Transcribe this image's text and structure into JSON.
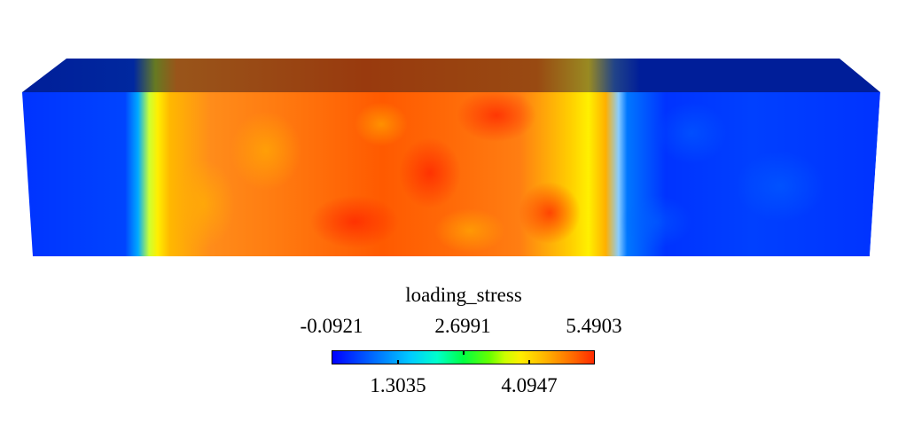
{
  "colorbar": {
    "title": "loading_stress",
    "min": -0.0921,
    "max": 5.4903,
    "top_ticks": [
      "-0.0921",
      "2.6991",
      "5.4903"
    ],
    "bottom_ticks": [
      "1.3035",
      "4.0947"
    ]
  },
  "colors": {
    "background": "#ffffff",
    "low": "#0022ff",
    "mid": "#00ff44",
    "high": "#ff3300",
    "yellow": "#ffee00"
  }
}
